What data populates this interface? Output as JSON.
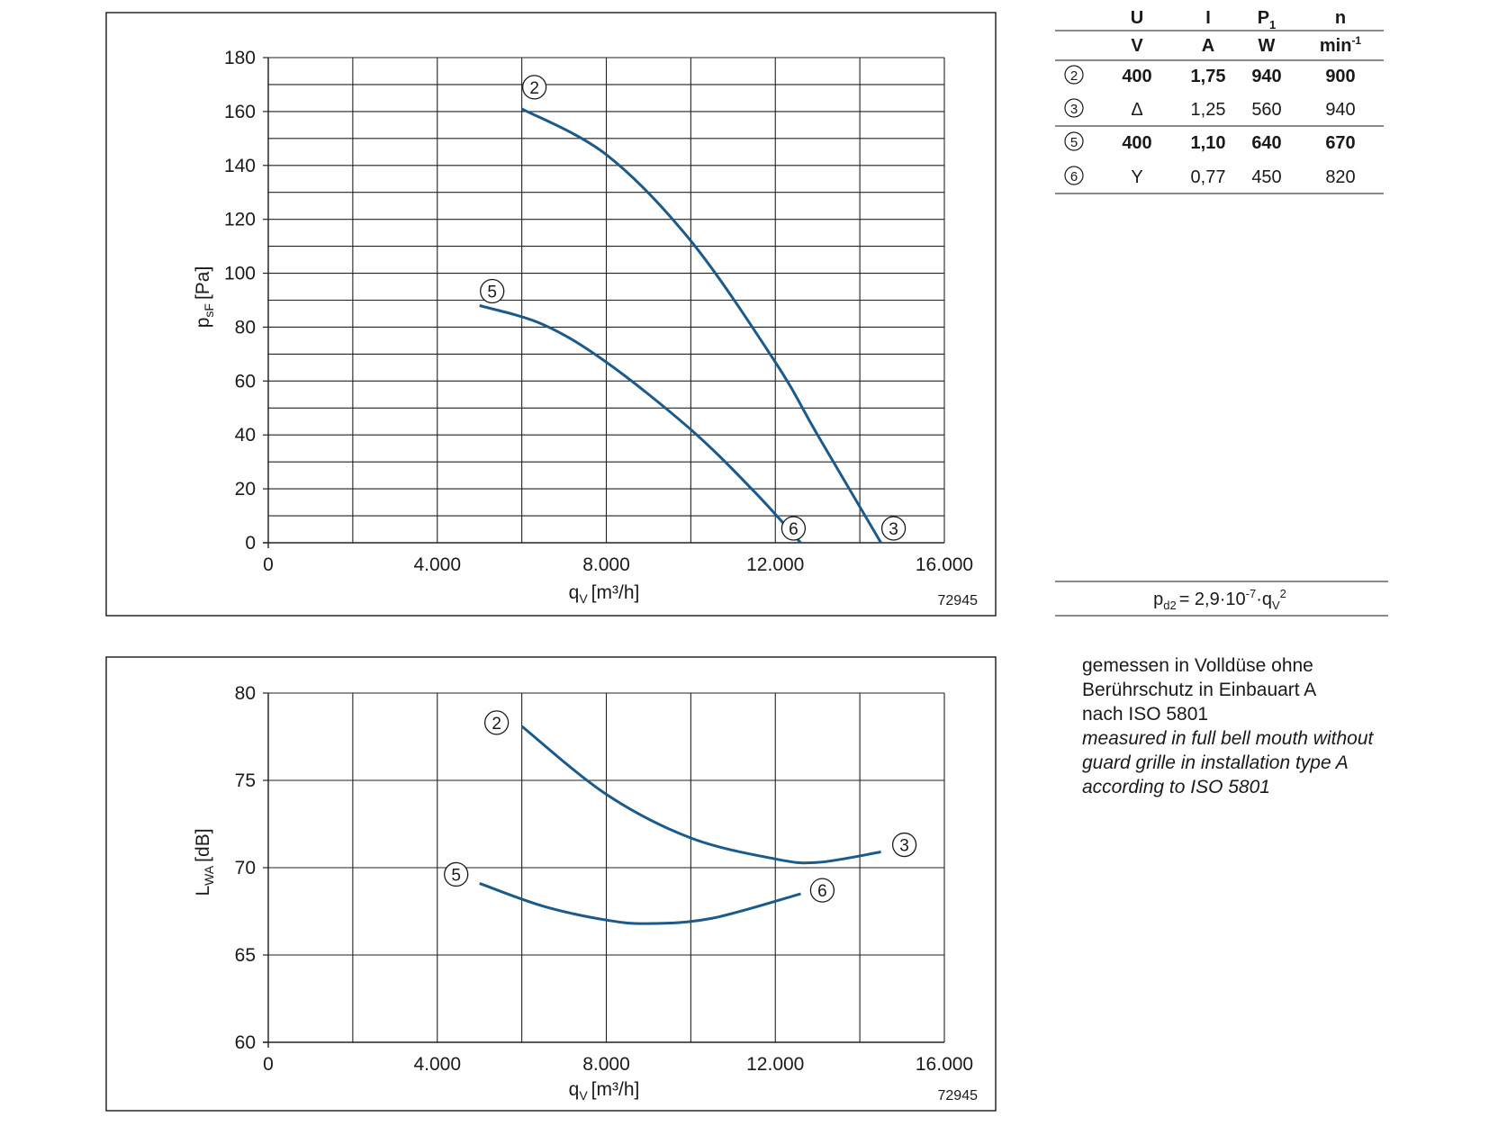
{
  "chart_data": [
    {
      "type": "line",
      "title": "",
      "xlabel": "q",
      "xlabel_sub": "V",
      "xlabel_unit": "[m³/h]",
      "ylabel": "p",
      "ylabel_sub": "sF",
      "ylabel_unit": "[Pa]",
      "xlim": [
        0,
        16000
      ],
      "ylim": [
        0,
        180
      ],
      "x_ticks": [
        0,
        4000,
        8000,
        12000,
        16000
      ],
      "x_tick_labels": [
        "0",
        "4.000",
        "8.000",
        "12.000",
        "16.000"
      ],
      "y_ticks": [
        0,
        20,
        40,
        60,
        80,
        100,
        120,
        140,
        160,
        180
      ],
      "y_tick_labels": [
        "0",
        "20",
        "40",
        "60",
        "80",
        "100",
        "120",
        "140",
        "160",
        "180"
      ],
      "grid": true,
      "series_color": "#1b5a8a",
      "series": [
        {
          "x": [
            6000,
            8000,
            10000,
            12000,
            13000,
            14500
          ],
          "y": [
            161,
            144,
            112,
            67,
            40,
            0
          ],
          "start_label": "2",
          "end_label": "3"
        },
        {
          "x": [
            5000,
            6500,
            8000,
            10000,
            11500,
            12600
          ],
          "y": [
            88,
            81,
            67,
            42,
            19,
            0
          ],
          "start_label": "5",
          "end_label": "6"
        }
      ],
      "code": "72945"
    },
    {
      "type": "line",
      "title": "",
      "xlabel": "q",
      "xlabel_sub": "V",
      "xlabel_unit": "[m³/h]",
      "ylabel": "L",
      "ylabel_sub": "WA",
      "ylabel_unit": "[dB]",
      "xlim": [
        0,
        16000
      ],
      "ylim": [
        60,
        80
      ],
      "x_ticks": [
        0,
        4000,
        8000,
        12000,
        16000
      ],
      "x_tick_labels": [
        "0",
        "4.000",
        "8.000",
        "12.000",
        "16.000"
      ],
      "y_ticks": [
        60,
        65,
        70,
        75,
        80
      ],
      "y_tick_labels": [
        "60",
        "65",
        "70",
        "75",
        "80"
      ],
      "grid": true,
      "series_color": "#1b5a8a",
      "series": [
        {
          "x": [
            6000,
            8000,
            10000,
            12000,
            13000,
            14500
          ],
          "y": [
            78.1,
            74.2,
            71.7,
            70.5,
            70.3,
            70.9
          ],
          "start_label": "2",
          "end_label": "3"
        },
        {
          "x": [
            5000,
            6500,
            8000,
            9000,
            10500,
            12600
          ],
          "y": [
            69.1,
            67.8,
            67.0,
            66.8,
            67.1,
            68.5
          ],
          "start_label": "5",
          "end_label": "6"
        }
      ],
      "code": "72945"
    }
  ],
  "table": {
    "headers": [
      "U",
      "I",
      "P",
      "n"
    ],
    "header_p_sub": "1",
    "units": [
      "V",
      "A",
      "W",
      "min"
    ],
    "unit_n_sup": "-1",
    "rows": [
      {
        "id": "2",
        "cells": [
          "400",
          "1,75",
          "940",
          "900"
        ],
        "bold": true
      },
      {
        "id": "3",
        "cells": [
          "Δ",
          "1,25",
          "560",
          "940"
        ],
        "bold": false
      },
      {
        "id": "5",
        "cells": [
          "400",
          "1,10",
          "640",
          "670"
        ],
        "bold": true
      },
      {
        "id": "6",
        "cells": [
          "Y",
          "0,77",
          "450",
          "820"
        ],
        "bold": false
      }
    ]
  },
  "formula": {
    "lhs": "p",
    "lhs_sub": "d2",
    "rhs_a": "= 2,9·10",
    "rhs_exp": "-7",
    "rhs_b": "·q",
    "rhs_sub": "V",
    "rhs_sup": "2"
  },
  "note": {
    "de": [
      "gemessen in Volldüse ohne",
      "Berührschutz in Einbauart A",
      "nach ISO 5801"
    ],
    "en": [
      "measured in full bell mouth without",
      "guard grille in installation type A",
      "according to ISO 5801"
    ]
  }
}
